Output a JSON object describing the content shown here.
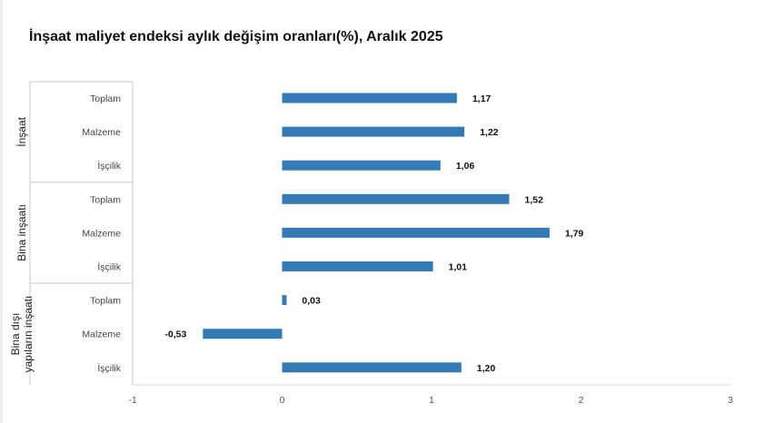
{
  "chart_data": {
    "type": "bar",
    "orientation": "horizontal",
    "title": "İnşaat maliyet endeksi aylık değişim oranları(%), Aralık 2025",
    "xlim": [
      -1,
      3
    ],
    "xticks": [
      "-1",
      "0",
      "1",
      "2",
      "3"
    ],
    "grid": false,
    "bar_color": "#337ab7",
    "groups": [
      {
        "label": "İnşaat",
        "items": [
          {
            "category": "Toplam",
            "value": 1.17,
            "label": "1,17"
          },
          {
            "category": "Malzeme",
            "value": 1.22,
            "label": "1,22"
          },
          {
            "category": "İşçilik",
            "value": 1.06,
            "label": "1,06"
          }
        ]
      },
      {
        "label": "Bina inşaatı",
        "items": [
          {
            "category": "Toplam",
            "value": 1.52,
            "label": "1,52"
          },
          {
            "category": "Malzeme",
            "value": 1.79,
            "label": "1,79"
          },
          {
            "category": "İşçilik",
            "value": 1.01,
            "label": "1,01"
          }
        ]
      },
      {
        "label": "Bina dışı yapıların inşaatı",
        "label_lines": [
          "Bina dışı",
          "yapıların inşaatı"
        ],
        "items": [
          {
            "category": "Toplam",
            "value": 0.03,
            "label": "0,03"
          },
          {
            "category": "Malzeme",
            "value": -0.53,
            "label": "-0,53"
          },
          {
            "category": "İşçilik",
            "value": 1.2,
            "label": "1,20"
          }
        ]
      }
    ]
  }
}
